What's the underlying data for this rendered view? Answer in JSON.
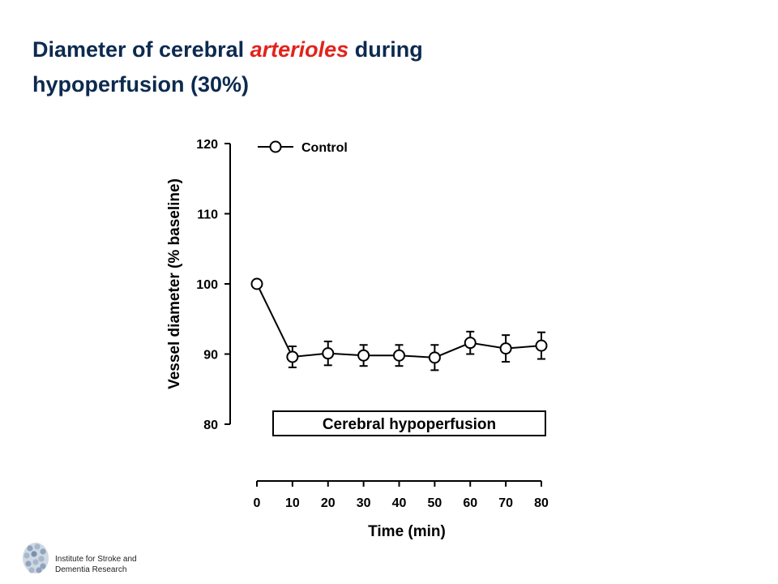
{
  "slide": {
    "title_part1": "Diameter of cerebral ",
    "title_accent": "arterioles",
    "title_part2": " during hypoperfusion (30%)"
  },
  "chart_data": {
    "type": "line",
    "x": [
      0,
      10,
      20,
      30,
      40,
      50,
      60,
      70,
      80
    ],
    "series": [
      {
        "name": "Control",
        "values": [
          100.0,
          89.6,
          90.1,
          89.8,
          89.8,
          89.5,
          91.6,
          90.8,
          91.2
        ],
        "errors": [
          0,
          1.5,
          1.7,
          1.5,
          1.5,
          1.8,
          1.6,
          1.9,
          1.9
        ]
      }
    ],
    "xlabel": "Time (min)",
    "ylabel": "Vessel diameter (% baseline)",
    "xticks": [
      "0",
      "10",
      "20",
      "30",
      "40",
      "50",
      "60",
      "70",
      "80"
    ],
    "yticks": [
      "80",
      "90",
      "100",
      "110",
      "120"
    ],
    "xlim": [
      0,
      80
    ],
    "ylim": [
      80,
      120
    ],
    "annotation": "Cerebral hypoperfusion",
    "legend_position": "top-left",
    "grid": false,
    "marker": "open-circle",
    "line_color": "#000000"
  },
  "logo": {
    "line1": "Institute for Stroke and",
    "line2": "Dementia Research"
  }
}
